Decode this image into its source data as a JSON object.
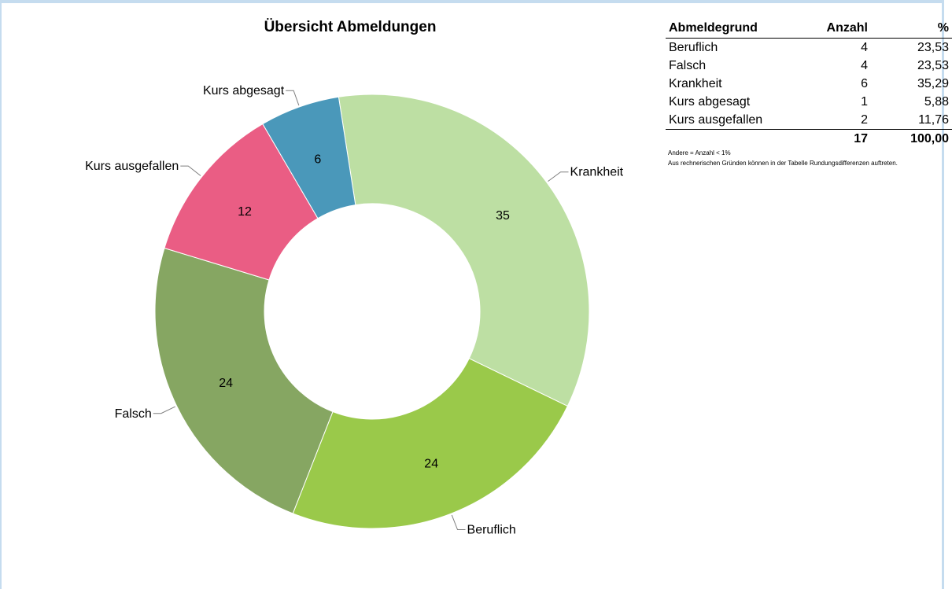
{
  "chart_data": {
    "type": "pie",
    "variant": "donut",
    "title": "Übersicht Abmeldungen",
    "slices": [
      {
        "label": "Krankheit",
        "value": 35,
        "color": "#bddfa3"
      },
      {
        "label": "Beruflich",
        "value": 24,
        "color": "#9ac94a"
      },
      {
        "label": "Falsch",
        "value": 24,
        "color": "#86a662"
      },
      {
        "label": "Kurs ausgefallen",
        "value": 12,
        "color": "#ea5d84"
      },
      {
        "label": "Kurs abgesagt",
        "value": 6,
        "color": "#4a98ba"
      }
    ],
    "order": "clockwise from top"
  },
  "table": {
    "headers": {
      "reason": "Abmeldegrund",
      "count": "Anzahl",
      "percent": "%"
    },
    "rows": [
      {
        "reason": "Beruflich",
        "count": "4",
        "percent": "23,53"
      },
      {
        "reason": "Falsch",
        "count": "4",
        "percent": "23,53"
      },
      {
        "reason": "Krankheit",
        "count": "6",
        "percent": "35,29"
      },
      {
        "reason": "Kurs abgesagt",
        "count": "1",
        "percent": "5,88"
      },
      {
        "reason": "Kurs ausgefallen",
        "count": "2",
        "percent": "11,76"
      }
    ],
    "total": {
      "count": "17",
      "percent": "100,00"
    }
  },
  "notes": {
    "line1": "Andere = Anzahl < 1%",
    "line2": "Aus rechnerischen Gründen können in der Tabelle Rundungsdifferenzen auftreten."
  }
}
